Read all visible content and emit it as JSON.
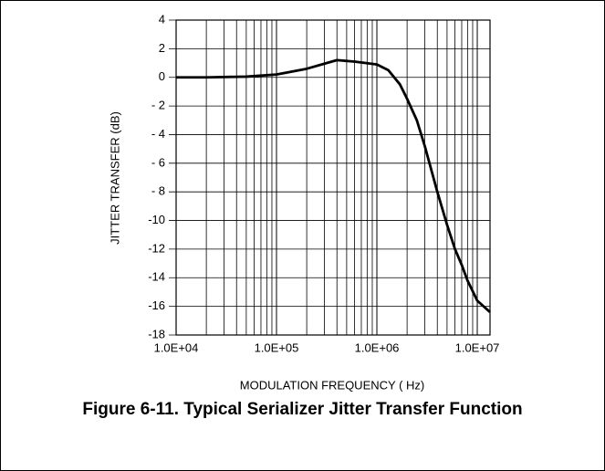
{
  "chart_data": {
    "type": "line",
    "title": "Figure 6-11. Typical Serializer Jitter Transfer Function",
    "xlabel": "MODULATION FREQUENCY ( Hz)",
    "ylabel": "JITTER TRANSFER (dB)",
    "xscale": "log",
    "xlim": [
      10000,
      13400000
    ],
    "ylim": [
      -18,
      4
    ],
    "xticks": [
      {
        "value": 10000,
        "label": "1.0E+04"
      },
      {
        "value": 100000,
        "label": "1.0E+05"
      },
      {
        "value": 1000000,
        "label": "1.0E+06"
      },
      {
        "value": 10000000,
        "label": "1.0E+07"
      }
    ],
    "x_minor_grid": [
      20000,
      30000,
      40000,
      50000,
      60000,
      70000,
      80000,
      90000,
      200000,
      300000,
      400000,
      500000,
      600000,
      700000,
      800000,
      900000,
      2000000,
      3000000,
      4000000,
      5000000,
      6000000,
      7000000,
      8000000,
      9000000
    ],
    "yticks": [
      4,
      2,
      0,
      {
        "value": -2,
        "label": "- 2"
      },
      {
        "value": -4,
        "label": "- 4"
      },
      {
        "value": -6,
        "label": "- 6"
      },
      {
        "value": -8,
        "label": "- 8"
      },
      {
        "value": -10,
        "label": "-10"
      },
      {
        "value": -12,
        "label": "-12"
      },
      {
        "value": -14,
        "label": "-14"
      },
      {
        "value": -16,
        "label": "-16"
      },
      {
        "value": -18,
        "label": "-18"
      }
    ],
    "grid": true,
    "series": [
      {
        "color": "#000000",
        "x": [
          10000,
          20000,
          50000,
          100000,
          200000,
          400000,
          600000,
          1000000,
          1300000,
          1700000,
          2000000,
          2500000,
          3000000,
          4000000,
          5000000,
          6000000,
          7000000,
          8000000,
          10000000,
          13400000
        ],
        "values": [
          0.0,
          0.0,
          0.05,
          0.2,
          0.6,
          1.2,
          1.1,
          0.9,
          0.5,
          -0.5,
          -1.5,
          -3,
          -4.8,
          -8,
          -10.3,
          -12,
          -13.1,
          -14.2,
          -15.6,
          -16.4
        ]
      }
    ]
  }
}
